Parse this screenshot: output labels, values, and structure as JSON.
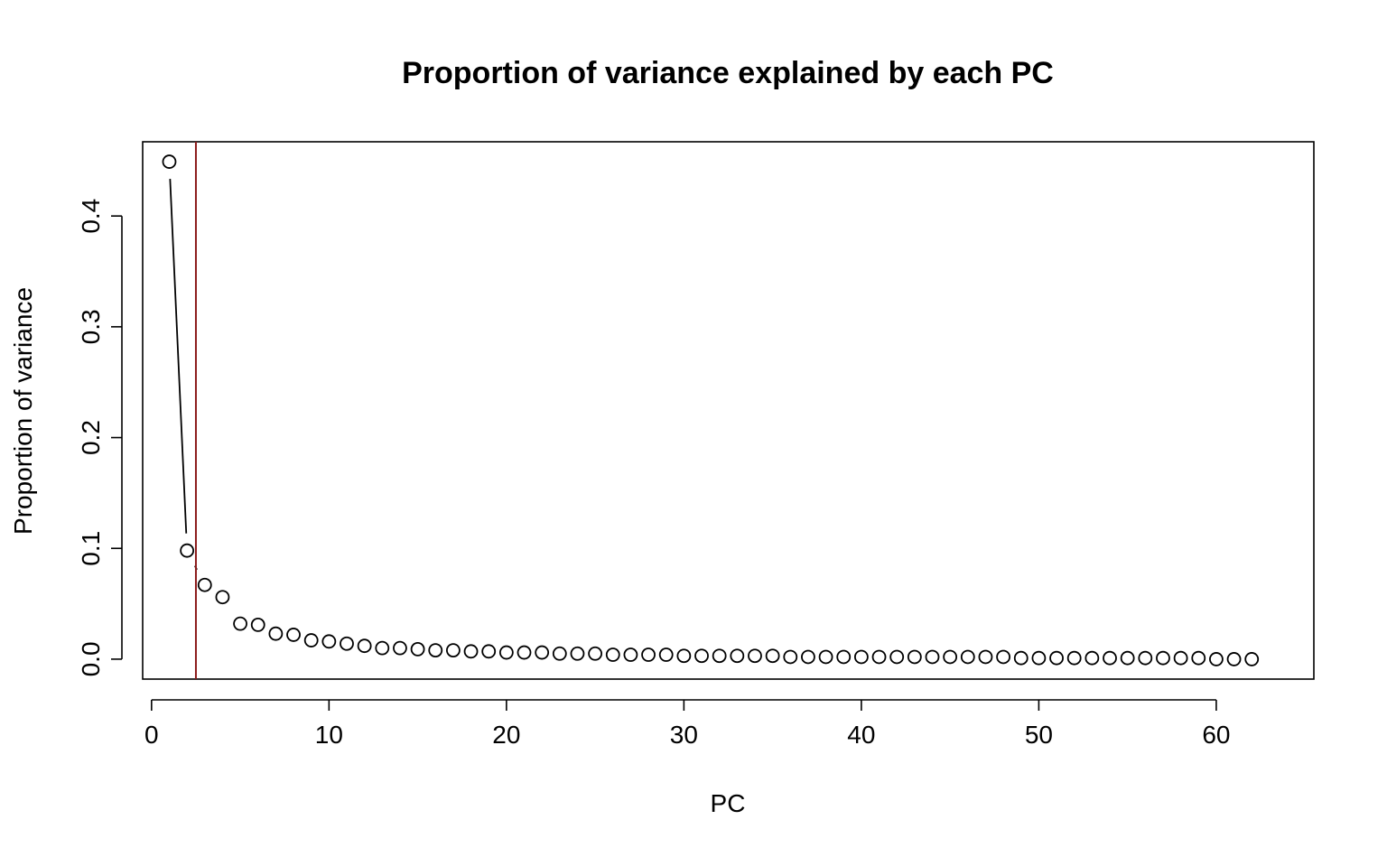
{
  "chart_data": {
    "type": "scatter",
    "title": "Proportion of variance explained by each PC",
    "xlabel": "PC",
    "ylabel": "Proportion of variance",
    "xlim": [
      -0.5,
      65.5
    ],
    "ylim": [
      -0.018,
      0.467
    ],
    "x_ticks": [
      0,
      10,
      20,
      30,
      40,
      50,
      60
    ],
    "y_ticks": [
      0.0,
      0.1,
      0.2,
      0.3,
      0.4
    ],
    "y_tick_labels": [
      "0.0",
      "0.1",
      "0.2",
      "0.3",
      "0.4"
    ],
    "grid": false,
    "point_style": "open-circle",
    "connected_points": [
      1,
      2,
      3
    ],
    "vertical_line": {
      "x": 2.5,
      "color": "#8b1a1a"
    },
    "series": [
      {
        "x": [
          1,
          2,
          3,
          4,
          5,
          6,
          7,
          8,
          9,
          10,
          11,
          12,
          13,
          14,
          15,
          16,
          17,
          18,
          19,
          20,
          21,
          22,
          23,
          24,
          25,
          26,
          27,
          28,
          29,
          30,
          31,
          32,
          33,
          34,
          35,
          36,
          37,
          38,
          39,
          40,
          41,
          42,
          43,
          44,
          45,
          46,
          47,
          48,
          49,
          50,
          51,
          52,
          53,
          54,
          55,
          56,
          57,
          58,
          59,
          60,
          61,
          62
        ],
        "y": [
          0.449,
          0.098,
          0.067,
          0.056,
          0.032,
          0.031,
          0.023,
          0.022,
          0.017,
          0.016,
          0.014,
          0.012,
          0.01,
          0.01,
          0.009,
          0.008,
          0.008,
          0.007,
          0.007,
          0.006,
          0.006,
          0.006,
          0.005,
          0.005,
          0.005,
          0.004,
          0.004,
          0.004,
          0.004,
          0.003,
          0.003,
          0.003,
          0.003,
          0.003,
          0.003,
          0.002,
          0.002,
          0.002,
          0.002,
          0.002,
          0.002,
          0.002,
          0.002,
          0.002,
          0.002,
          0.002,
          0.002,
          0.002,
          0.001,
          0.001,
          0.001,
          0.001,
          0.001,
          0.001,
          0.001,
          0.001,
          0.001,
          0.001,
          0.001,
          0.0,
          0.0,
          0.0
        ]
      }
    ]
  }
}
